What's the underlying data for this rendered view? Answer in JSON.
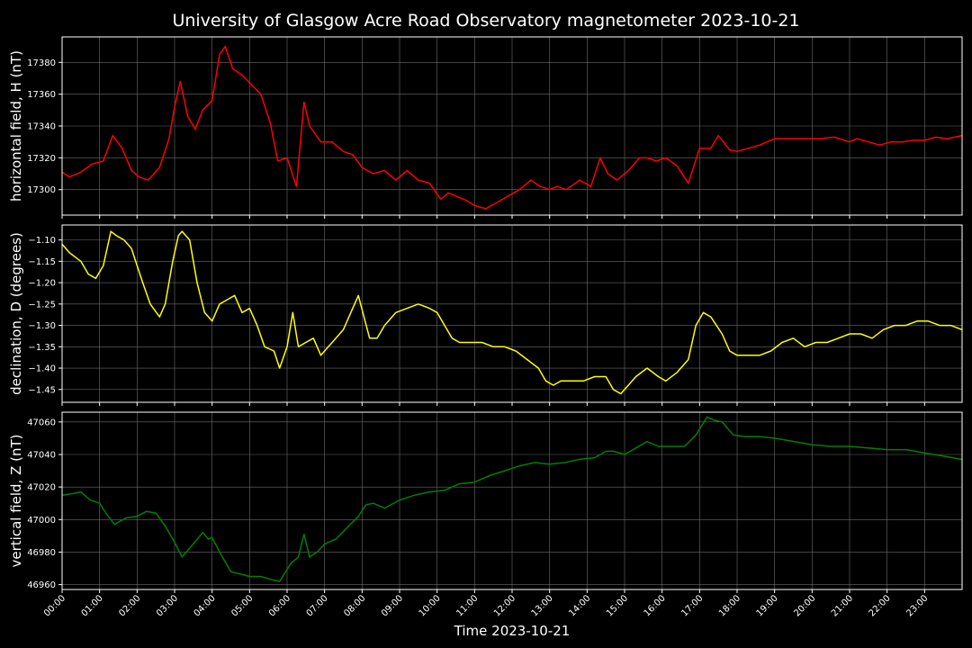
{
  "chart_data": {
    "type": "line",
    "title": "University of Glasgow Acre Road Observatory magnetometer 2023-10-21",
    "xlabel": "Time 2023-10-21",
    "x_ticks": [
      "00:00",
      "01:00",
      "02:00",
      "03:00",
      "04:00",
      "05:00",
      "06:00",
      "07:00",
      "08:00",
      "09:00",
      "10:00",
      "11:00",
      "12:00",
      "13:00",
      "14:00",
      "15:00",
      "16:00",
      "17:00",
      "18:00",
      "19:00",
      "20:00",
      "21:00",
      "22:00",
      "23:00"
    ],
    "x_range_hours": [
      0,
      24
    ],
    "grid": true,
    "panels": [
      {
        "name": "H",
        "ylabel": "horizontal field, H (nT)",
        "color": "#ff0000",
        "ylim": [
          17284,
          17396
        ],
        "y_ticks": [
          17300,
          17320,
          17340,
          17360,
          17380
        ],
        "y_tick_labels": [
          "17300",
          "17320",
          "17340",
          "17360",
          "17380"
        ],
        "hours": [
          0.0,
          0.2,
          0.5,
          0.8,
          1.1,
          1.35,
          1.6,
          1.85,
          2.05,
          2.3,
          2.6,
          2.85,
          3.0,
          3.15,
          3.35,
          3.55,
          3.75,
          4.0,
          4.2,
          4.35,
          4.55,
          4.8,
          5.05,
          5.3,
          5.55,
          5.75,
          6.0,
          6.25,
          6.45,
          6.6,
          6.9,
          7.2,
          7.5,
          7.75,
          8.0,
          8.3,
          8.6,
          8.9,
          9.2,
          9.5,
          9.8,
          10.1,
          10.3,
          10.5,
          10.8,
          11.0,
          11.3,
          11.6,
          11.9,
          12.2,
          12.5,
          12.75,
          13.0,
          13.2,
          13.45,
          13.8,
          14.1,
          14.35,
          14.55,
          14.8,
          15.1,
          15.4,
          15.6,
          15.85,
          16.1,
          16.4,
          16.7,
          17.0,
          17.3,
          17.5,
          17.8,
          18.0,
          18.3,
          18.6,
          19.0,
          19.4,
          19.8,
          20.2,
          20.6,
          21.0,
          21.2,
          21.5,
          21.8,
          22.1,
          22.4,
          22.7,
          23.0,
          23.3,
          23.6,
          24.0
        ],
        "values": [
          17311,
          17308,
          17311,
          17316,
          17318,
          17334,
          17326,
          17312,
          17308,
          17306,
          17314,
          17332,
          17352,
          17368,
          17346,
          17338,
          17350,
          17356,
          17385,
          17390,
          17376,
          17372,
          17366,
          17360,
          17342,
          17318,
          17320,
          17302,
          17355,
          17340,
          17330,
          17330,
          17324,
          17322,
          17314,
          17310,
          17312,
          17306,
          17312,
          17306,
          17304,
          17294,
          17298,
          17296,
          17293,
          17290,
          17288,
          17292,
          17296,
          17300,
          17306,
          17302,
          17300,
          17302,
          17300,
          17306,
          17302,
          17320,
          17310,
          17306,
          17312,
          17320,
          17320,
          17318,
          17320,
          17315,
          17304,
          17326,
          17326,
          17334,
          17325,
          17324,
          17326,
          17328,
          17332,
          17332,
          17332,
          17332,
          17333,
          17330,
          17332,
          17330,
          17328,
          17330,
          17330,
          17331,
          17331,
          17333,
          17332,
          17334
        ]
      },
      {
        "name": "D",
        "ylabel": "declination, D (degrees)",
        "color": "#ffff00",
        "ylim": [
          -1.48,
          -1.065
        ],
        "y_ticks": [
          -1.45,
          -1.4,
          -1.35,
          -1.3,
          -1.25,
          -1.2,
          -1.15,
          -1.1
        ],
        "y_tick_labels": [
          "−1.45",
          "−1.40",
          "−1.35",
          "−1.30",
          "−1.25",
          "−1.20",
          "−1.15",
          "−1.10"
        ],
        "hours": [
          0.0,
          0.2,
          0.5,
          0.7,
          0.9,
          1.1,
          1.3,
          1.45,
          1.65,
          1.85,
          2.0,
          2.15,
          2.35,
          2.6,
          2.75,
          2.95,
          3.1,
          3.2,
          3.4,
          3.6,
          3.8,
          4.0,
          4.2,
          4.4,
          4.6,
          4.8,
          5.0,
          5.2,
          5.4,
          5.65,
          5.8,
          6.0,
          6.15,
          6.3,
          6.5,
          6.7,
          6.9,
          7.1,
          7.3,
          7.5,
          7.7,
          7.9,
          8.05,
          8.2,
          8.4,
          8.6,
          8.9,
          9.2,
          9.5,
          9.8,
          10.0,
          10.2,
          10.4,
          10.6,
          10.9,
          11.2,
          11.5,
          11.8,
          12.1,
          12.4,
          12.7,
          12.9,
          13.1,
          13.3,
          13.6,
          13.9,
          14.2,
          14.5,
          14.7,
          14.9,
          15.1,
          15.3,
          15.6,
          15.9,
          16.1,
          16.4,
          16.7,
          16.9,
          17.1,
          17.3,
          17.6,
          17.8,
          18.0,
          18.3,
          18.6,
          18.9,
          19.2,
          19.5,
          19.8,
          20.1,
          20.4,
          20.7,
          21.0,
          21.3,
          21.6,
          21.9,
          22.2,
          22.5,
          22.8,
          23.1,
          23.4,
          23.7,
          24.0
        ],
        "values": [
          -1.11,
          -1.13,
          -1.15,
          -1.18,
          -1.19,
          -1.16,
          -1.08,
          -1.09,
          -1.1,
          -1.12,
          -1.16,
          -1.2,
          -1.25,
          -1.28,
          -1.25,
          -1.15,
          -1.09,
          -1.08,
          -1.1,
          -1.2,
          -1.27,
          -1.29,
          -1.25,
          -1.24,
          -1.23,
          -1.27,
          -1.26,
          -1.3,
          -1.35,
          -1.36,
          -1.4,
          -1.35,
          -1.27,
          -1.35,
          -1.34,
          -1.33,
          -1.37,
          -1.35,
          -1.33,
          -1.31,
          -1.27,
          -1.23,
          -1.28,
          -1.33,
          -1.33,
          -1.3,
          -1.27,
          -1.26,
          -1.25,
          -1.26,
          -1.27,
          -1.3,
          -1.33,
          -1.34,
          -1.34,
          -1.34,
          -1.35,
          -1.35,
          -1.36,
          -1.38,
          -1.4,
          -1.43,
          -1.44,
          -1.43,
          -1.43,
          -1.43,
          -1.42,
          -1.42,
          -1.45,
          -1.46,
          -1.44,
          -1.42,
          -1.4,
          -1.42,
          -1.43,
          -1.41,
          -1.38,
          -1.3,
          -1.27,
          -1.28,
          -1.32,
          -1.36,
          -1.37,
          -1.37,
          -1.37,
          -1.36,
          -1.34,
          -1.33,
          -1.35,
          -1.34,
          -1.34,
          -1.33,
          -1.32,
          -1.32,
          -1.33,
          -1.31,
          -1.3,
          -1.3,
          -1.29,
          -1.29,
          -1.3,
          -1.3,
          -1.31
        ]
      },
      {
        "name": "Z",
        "ylabel": "vertical field, Z (nT)",
        "color": "#008000",
        "ylim": [
          46957,
          47066
        ],
        "y_ticks": [
          46960,
          46980,
          47000,
          47020,
          47040,
          47060
        ],
        "y_tick_labels": [
          "46960",
          "46980",
          "47000",
          "47020",
          "47040",
          "47060"
        ],
        "hours": [
          0.0,
          0.3,
          0.5,
          0.75,
          1.0,
          1.2,
          1.4,
          1.7,
          2.0,
          2.25,
          2.5,
          2.75,
          3.0,
          3.2,
          3.5,
          3.75,
          3.9,
          4.0,
          4.2,
          4.5,
          5.0,
          5.3,
          5.6,
          5.8,
          6.1,
          6.3,
          6.45,
          6.6,
          6.8,
          7.0,
          7.3,
          7.6,
          7.9,
          8.1,
          8.3,
          8.6,
          9.0,
          9.4,
          9.8,
          10.2,
          10.6,
          11.0,
          11.4,
          11.8,
          12.2,
          12.6,
          13.0,
          13.4,
          13.8,
          14.2,
          14.5,
          14.7,
          15.0,
          15.3,
          15.6,
          15.9,
          16.2,
          16.6,
          16.9,
          17.2,
          17.4,
          17.6,
          17.9,
          18.2,
          18.6,
          19.0,
          19.5,
          20.0,
          20.5,
          21.0,
          21.5,
          22.0,
          22.5,
          23.0,
          23.5,
          24.0
        ],
        "values": [
          47015,
          47016,
          47017,
          47012,
          47010,
          47003,
          46997,
          47001,
          47002,
          47005,
          47004,
          46996,
          46986,
          46977,
          46985,
          46992,
          46988,
          46989,
          46980,
          46968,
          46965,
          46965,
          46963,
          46962,
          46973,
          46977,
          46991,
          46977,
          46980,
          46985,
          46988,
          46995,
          47002,
          47009,
          47010,
          47007,
          47012,
          47015,
          47017,
          47018,
          47022,
          47023,
          47027,
          47030,
          47033,
          47035,
          47034,
          47035,
          47037,
          47038,
          47042,
          47042,
          47040,
          47044,
          47048,
          47045,
          47045,
          47045,
          47052,
          47063,
          47061,
          47060,
          47052,
          47051,
          47051,
          47050,
          47048,
          47046,
          47045,
          47045,
          47044,
          47043,
          47043,
          47041,
          47039,
          47037
        ]
      }
    ]
  }
}
